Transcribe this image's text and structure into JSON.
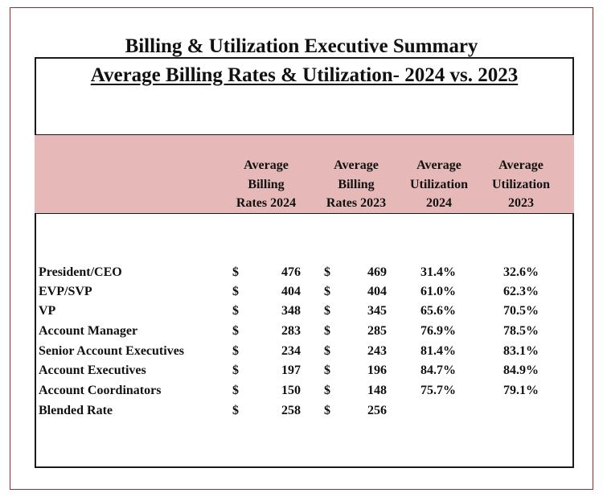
{
  "title": "Billing & Utilization Executive Summary",
  "subtitle": "Average Billing Rates & Utilization- 2024 vs. 2023",
  "columns": [
    {
      "line1": "Average",
      "line2": "Billing",
      "line3": "Rates 2024"
    },
    {
      "line1": "Average",
      "line2": "Billing",
      "line3": "Rates 2023"
    },
    {
      "line1": "Average",
      "line2": "Utilization",
      "line3": "2024"
    },
    {
      "line1": "Average",
      "line2": "Utilization",
      "line3": "2023"
    }
  ],
  "currency_symbol": "$",
  "rows": [
    {
      "role": "President/CEO",
      "rate_2024": "476",
      "rate_2023": "469",
      "util_2024": "31.4%",
      "util_2023": "32.6%"
    },
    {
      "role": "EVP/SVP",
      "rate_2024": "404",
      "rate_2023": "404",
      "util_2024": "61.0%",
      "util_2023": "62.3%"
    },
    {
      "role": "VP",
      "rate_2024": "348",
      "rate_2023": "345",
      "util_2024": "65.6%",
      "util_2023": "70.5%"
    },
    {
      "role": "Account Manager",
      "rate_2024": "283",
      "rate_2023": "285",
      "util_2024": "76.9%",
      "util_2023": "78.5%"
    },
    {
      "role": "Senior Account Executives",
      "rate_2024": "234",
      "rate_2023": "243",
      "util_2024": "81.4%",
      "util_2023": "83.1%"
    },
    {
      "role": "Account Executives",
      "rate_2024": "197",
      "rate_2023": "196",
      "util_2024": "84.7%",
      "util_2023": "84.9%"
    },
    {
      "role": "Account Coordinators",
      "rate_2024": "150",
      "rate_2023": "148",
      "util_2024": "75.7%",
      "util_2023": "79.1%"
    },
    {
      "role": "Blended Rate",
      "rate_2024": "258",
      "rate_2023": "256",
      "util_2024": "",
      "util_2023": ""
    }
  ],
  "colors": {
    "accent_frame": "#9b2a2a",
    "header_band": "#e6b9b8"
  }
}
